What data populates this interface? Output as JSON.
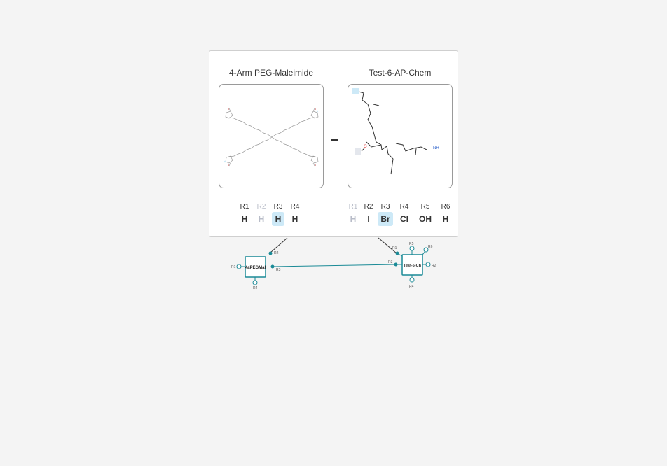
{
  "molecules": [
    {
      "name": "4-Arm PEG-Maleimide",
      "rgroups": [
        {
          "label": "R1",
          "value": "H",
          "state": "normal"
        },
        {
          "label": "R2",
          "value": "H",
          "state": "dim"
        },
        {
          "label": "R3",
          "value": "H",
          "state": "highlight"
        },
        {
          "label": "R4",
          "value": "H",
          "state": "normal"
        }
      ]
    },
    {
      "name": "Test-6-AP-Chem",
      "rgroups": [
        {
          "label": "R1",
          "value": "H",
          "state": "dim"
        },
        {
          "label": "R2",
          "value": "I",
          "state": "normal"
        },
        {
          "label": "R3",
          "value": "Br",
          "state": "highlight"
        },
        {
          "label": "R4",
          "value": "Cl",
          "state": "normal"
        },
        {
          "label": "R5",
          "value": "OH",
          "state": "normal"
        },
        {
          "label": "R6",
          "value": "H",
          "state": "normal"
        }
      ]
    }
  ],
  "connector": "–",
  "atom_labels": {
    "oxygen": "O",
    "nitrogen": "NH"
  },
  "graph": {
    "nodes": [
      {
        "label": "4aPEGMal",
        "ports": [
          "R1",
          "R2",
          "R3",
          "R4"
        ]
      },
      {
        "label": "Test-6-Ch",
        "ports": [
          "R1",
          "R2",
          "R3",
          "R4",
          "R5",
          "R6"
        ]
      }
    ],
    "edge": {
      "from": "R3",
      "to": "R3"
    }
  },
  "colors": {
    "accent": "#1a8a96",
    "highlight": "#cde9f7",
    "dim": "#b8bcc8"
  }
}
